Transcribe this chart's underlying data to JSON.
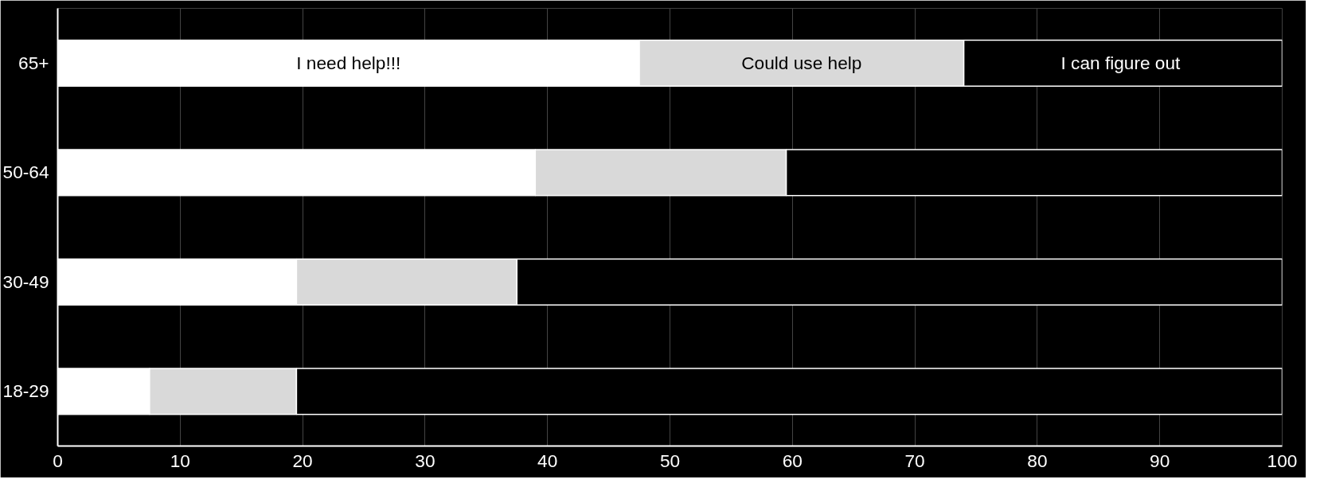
{
  "chart_data": {
    "type": "bar",
    "orientation": "horizontal",
    "stacked": true,
    "categories": [
      "65+",
      "50-64",
      "30-49",
      "18-29"
    ],
    "series": [
      {
        "name": "I need help!!!",
        "color": "#ffffff",
        "values": [
          47.5,
          39,
          19.5,
          7.5
        ]
      },
      {
        "name": "Could use help",
        "color": "#d9d9d9",
        "values": [
          26.5,
          20.5,
          18,
          12
        ]
      },
      {
        "name": "I  can figure out",
        "color": "#000000",
        "values": [
          26,
          40.5,
          62.5,
          80.5
        ]
      }
    ],
    "xlim": [
      0,
      100
    ],
    "xticks": [
      0,
      10,
      20,
      30,
      40,
      50,
      60,
      70,
      80,
      90,
      100
    ],
    "grid": "x"
  }
}
